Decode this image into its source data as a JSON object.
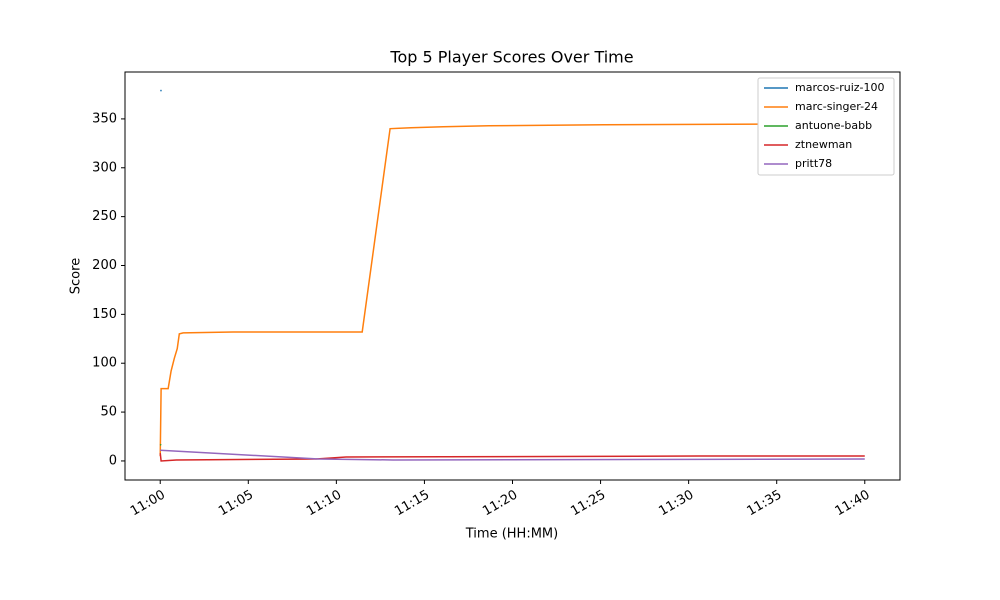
{
  "chart_data": {
    "type": "line",
    "title": "Top 5 Player Scores Over Time",
    "x_label": "Time (HH:MM)",
    "y_label": "Score",
    "xlim": [
      "10:58:00",
      "11:42:00"
    ],
    "xticks": [
      "11:00",
      "11:05",
      "11:10",
      "11:15",
      "11:20",
      "11:25",
      "11:30",
      "11:35",
      "11:40"
    ],
    "ylim": [
      -19.5,
      398
    ],
    "yticks": [
      0,
      50,
      100,
      150,
      200,
      250,
      300,
      350
    ],
    "legend": "upper right",
    "series": [
      {
        "name": "marcos-ruiz-100",
        "color": "#1f77b4",
        "x": [
          "11:00:00",
          "11:00:05"
        ],
        "values": [
          379,
          379
        ]
      },
      {
        "name": "marc-singer-24",
        "color": "#ff7f0e",
        "x": [
          "11:00:00",
          "11:00:03",
          "11:00:27",
          "11:00:37",
          "11:00:48",
          "11:00:58",
          "11:01:05",
          "11:01:18",
          "11:04:08",
          "11:11:28",
          "11:13:03",
          "11:14:14",
          "11:16:04",
          "11:18:40",
          "11:25:12",
          "11:40:00"
        ],
        "values": [
          5,
          74,
          74,
          92,
          105,
          115,
          130,
          131,
          132,
          132,
          340,
          341,
          342,
          343,
          344,
          345
        ]
      },
      {
        "name": "antuone-babb",
        "color": "#2ca02c",
        "x": [
          "11:00:00",
          "11:00:03"
        ],
        "values": [
          17,
          16
        ]
      },
      {
        "name": "ztnewman",
        "color": "#d62728",
        "x": [
          "11:00:00",
          "11:00:03",
          "11:00:55",
          "11:08:51",
          "11:10:33",
          "11:30:35",
          "11:40:00"
        ],
        "values": [
          8,
          0,
          1,
          2,
          4,
          5,
          5
        ]
      },
      {
        "name": "pritt78",
        "color": "#9467bd",
        "x": [
          "11:00:00",
          "11:09:00",
          "11:13:13",
          "11:40:00"
        ],
        "values": [
          11,
          2,
          1,
          2
        ]
      }
    ]
  }
}
